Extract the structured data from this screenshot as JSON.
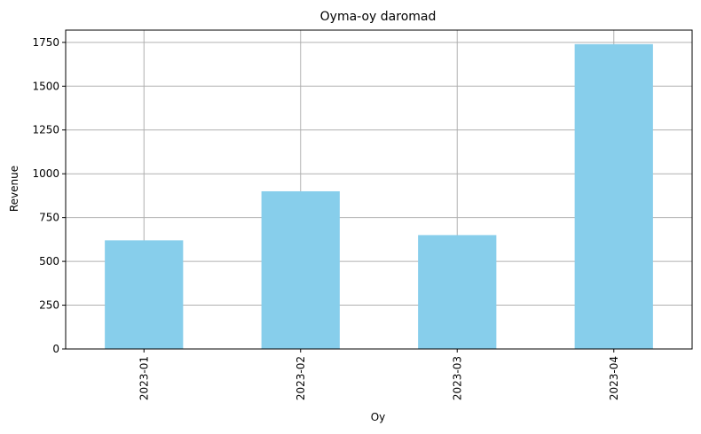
{
  "chart_data": {
    "type": "bar",
    "title": "Oyma-oy daromad",
    "xlabel": "Oy",
    "ylabel": "Revenue",
    "categories": [
      "2023-01",
      "2023-02",
      "2023-03",
      "2023-04"
    ],
    "values": [
      620,
      900,
      650,
      1740
    ],
    "ylim": [
      0,
      1820
    ],
    "yticks": [
      0,
      250,
      500,
      750,
      1000,
      1250,
      1500,
      1750
    ],
    "grid": true,
    "colors": {
      "bar": "#87ceeb",
      "grid": "#b0b0b0",
      "axis": "#000000"
    }
  }
}
